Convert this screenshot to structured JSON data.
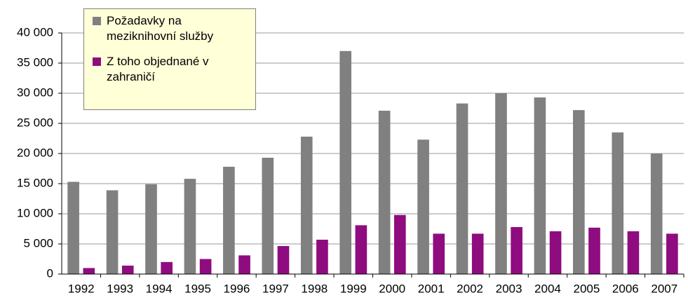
{
  "chart_data": {
    "type": "bar",
    "categories": [
      "1992",
      "1993",
      "1994",
      "1995",
      "1996",
      "1997",
      "1998",
      "1999",
      "2000",
      "2001",
      "2002",
      "2003",
      "2004",
      "2005",
      "2006",
      "2007"
    ],
    "series": [
      {
        "name": "Požadavky na meziknihovní služby",
        "color": "#808080",
        "values": [
          15300,
          13900,
          14900,
          15800,
          17800,
          19300,
          22800,
          37000,
          27100,
          22300,
          28300,
          30000,
          29300,
          27200,
          23500,
          20000
        ]
      },
      {
        "name": "Z toho objednané v zahraničí",
        "color": "#8e0c80",
        "values": [
          1000,
          1400,
          2000,
          2500,
          3100,
          4650,
          5700,
          8100,
          9800,
          6700,
          6700,
          7800,
          7100,
          7700,
          7100,
          6700
        ]
      }
    ],
    "ylim": [
      0,
      40000
    ],
    "yticks": [
      0,
      {
        "value": 5000,
        "label": "5 000"
      },
      {
        "value": 10000,
        "label": "10 000"
      },
      {
        "value": 15000,
        "label": "15 000"
      },
      {
        "value": 20000,
        "label": "20 000"
      },
      {
        "value": 25000,
        "label": "25 000"
      },
      {
        "value": 30000,
        "label": "30 000"
      },
      {
        "value": 35000,
        "label": "35 000"
      },
      {
        "value": 40000,
        "label": "40 000"
      }
    ],
    "grid": true,
    "legend": "upper left"
  }
}
